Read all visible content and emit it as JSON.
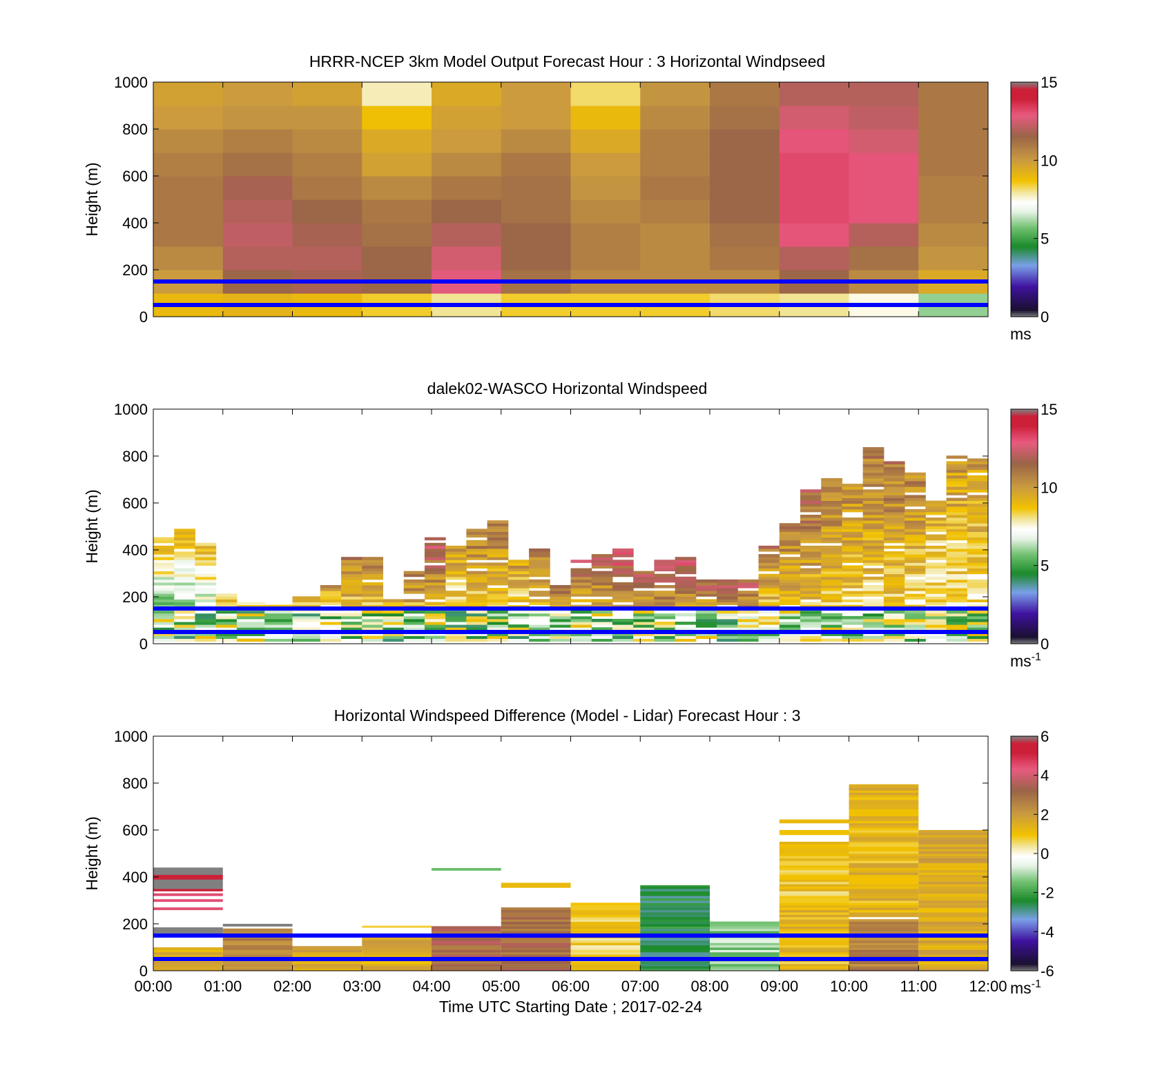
{
  "chart_data": [
    {
      "type": "heatmap",
      "title": "HRRR-NCEP 3km Model Output   Forecast Hour : 3 Horizontal Windpseed",
      "ylabel": "Height (m)",
      "xlabel": "",
      "ylim": [
        0,
        1000
      ],
      "yticks": [
        "0",
        "200",
        "400",
        "600",
        "800",
        "1000"
      ],
      "xlim": [
        0,
        12
      ],
      "colorbar": {
        "min": 0,
        "max": 15,
        "ticks": [
          "0",
          "5",
          "10",
          "15"
        ],
        "unit": "ms",
        "unit_sup": ""
      },
      "reference_lines_m": [
        150,
        50
      ],
      "heights_m": [
        50,
        150,
        250,
        350,
        450,
        550,
        650,
        750,
        850,
        950
      ],
      "cells": [
        {
          "x0": 0,
          "x1": 1,
          "values": [
            9.0,
            10.0,
            10.5,
            11.0,
            11.0,
            11.0,
            10.8,
            10.5,
            10.0,
            9.8
          ]
        },
        {
          "x0": 1,
          "x1": 2,
          "values": [
            9.2,
            11.5,
            12.0,
            12.2,
            12.0,
            11.8,
            11.2,
            10.8,
            10.2,
            10.0
          ]
        },
        {
          "x0": 2,
          "x1": 3,
          "values": [
            9.0,
            11.8,
            12.0,
            11.8,
            11.5,
            11.0,
            10.8,
            10.5,
            10.2,
            9.8
          ]
        },
        {
          "x0": 3,
          "x1": 4,
          "values": [
            8.5,
            11.5,
            11.5,
            11.2,
            11.0,
            10.5,
            9.8,
            9.5,
            8.8,
            7.8
          ]
        },
        {
          "x0": 4,
          "x1": 5,
          "values": [
            8.0,
            12.8,
            12.5,
            12.0,
            11.5,
            11.0,
            10.5,
            10.0,
            9.8,
            9.5
          ]
        },
        {
          "x0": 5,
          "x1": 6,
          "values": [
            8.5,
            11.2,
            11.5,
            11.5,
            11.2,
            11.2,
            11.0,
            10.5,
            10.0,
            10.0
          ]
        },
        {
          "x0": 6,
          "x1": 7,
          "values": [
            8.5,
            10.5,
            10.8,
            10.8,
            10.5,
            10.2,
            10.0,
            9.5,
            9.0,
            8.2
          ]
        },
        {
          "x0": 7,
          "x1": 8,
          "values": [
            8.5,
            10.5,
            10.5,
            10.5,
            10.8,
            11.0,
            10.8,
            10.8,
            10.5,
            10.2
          ]
        },
        {
          "x0": 8,
          "x1": 9,
          "values": [
            8.2,
            10.5,
            11.0,
            11.2,
            11.5,
            11.5,
            11.5,
            11.5,
            11.2,
            11.0
          ]
        },
        {
          "x0": 9,
          "x1": 10,
          "values": [
            8.0,
            11.5,
            12.0,
            13.0,
            13.2,
            13.2,
            13.2,
            13.0,
            12.5,
            12.0
          ]
        },
        {
          "x0": 10,
          "x1": 11,
          "values": [
            7.5,
            10.5,
            11.2,
            12.0,
            13.0,
            13.0,
            13.0,
            12.5,
            12.2,
            12.0
          ]
        },
        {
          "x0": 11,
          "x1": 12,
          "values": [
            6.0,
            9.5,
            10.2,
            10.5,
            10.8,
            10.8,
            11.0,
            11.0,
            11.0,
            11.0
          ]
        }
      ]
    },
    {
      "type": "heatmap",
      "title": "dalek02-WASCO  Horizontal Windspeed",
      "ylabel": "Height (m)",
      "xlabel": "",
      "ylim": [
        0,
        1000
      ],
      "yticks": [
        "0",
        "200",
        "400",
        "600",
        "800",
        "1000"
      ],
      "xlim": [
        0,
        12
      ],
      "colorbar": {
        "min": 0,
        "max": 15,
        "ticks": [
          "0",
          "5",
          "10",
          "15"
        ],
        "unit": "ms",
        "unit_sup": "-1"
      },
      "reference_lines_m": [
        150,
        50
      ],
      "columns": [
        {
          "x0": 0.0,
          "x1": 0.3,
          "top": 450,
          "low": 3,
          "high": 9
        },
        {
          "x0": 0.3,
          "x1": 0.6,
          "top": 490,
          "low": 4,
          "high": 9
        },
        {
          "x0": 0.6,
          "x1": 0.9,
          "top": 420,
          "low": 4,
          "high": 9
        },
        {
          "x0": 0.9,
          "x1": 1.2,
          "top": 210,
          "low": 5,
          "high": 9
        },
        {
          "x0": 1.2,
          "x1": 1.6,
          "top": 180,
          "low": 5,
          "high": 9
        },
        {
          "x0": 1.6,
          "x1": 2.0,
          "top": 160,
          "low": 5,
          "high": 9
        },
        {
          "x0": 2.0,
          "x1": 2.4,
          "top": 200,
          "low": 5,
          "high": 9
        },
        {
          "x0": 2.4,
          "x1": 2.7,
          "top": 250,
          "low": 5,
          "high": 10
        },
        {
          "x0": 2.7,
          "x1": 3.0,
          "top": 370,
          "low": 6,
          "high": 11
        },
        {
          "x0": 3.0,
          "x1": 3.3,
          "top": 360,
          "low": 6,
          "high": 11
        },
        {
          "x0": 3.3,
          "x1": 3.6,
          "top": 190,
          "low": 6,
          "high": 10
        },
        {
          "x0": 3.6,
          "x1": 3.9,
          "top": 300,
          "low": 6,
          "high": 11
        },
        {
          "x0": 3.9,
          "x1": 4.2,
          "top": 450,
          "low": 6,
          "high": 12.5
        },
        {
          "x0": 4.2,
          "x1": 4.5,
          "top": 420,
          "low": 6,
          "high": 10
        },
        {
          "x0": 4.5,
          "x1": 4.8,
          "top": 480,
          "low": 6,
          "high": 11
        },
        {
          "x0": 4.8,
          "x1": 5.1,
          "top": 520,
          "low": 6,
          "high": 11
        },
        {
          "x0": 5.1,
          "x1": 5.4,
          "top": 360,
          "low": 6,
          "high": 10
        },
        {
          "x0": 5.4,
          "x1": 5.7,
          "top": 400,
          "low": 6,
          "high": 11
        },
        {
          "x0": 5.7,
          "x1": 6.0,
          "top": 250,
          "low": 6,
          "high": 11
        },
        {
          "x0": 6.0,
          "x1": 6.3,
          "top": 350,
          "low": 6,
          "high": 12
        },
        {
          "x0": 6.3,
          "x1": 6.6,
          "top": 380,
          "low": 6,
          "high": 12
        },
        {
          "x0": 6.6,
          "x1": 6.9,
          "top": 400,
          "low": 6,
          "high": 13
        },
        {
          "x0": 6.9,
          "x1": 7.2,
          "top": 300,
          "low": 6,
          "high": 12
        },
        {
          "x0": 7.2,
          "x1": 7.5,
          "top": 370,
          "low": 6,
          "high": 13
        },
        {
          "x0": 7.5,
          "x1": 7.8,
          "top": 370,
          "low": 6,
          "high": 13
        },
        {
          "x0": 7.8,
          "x1": 8.1,
          "top": 280,
          "low": 6,
          "high": 12
        },
        {
          "x0": 8.1,
          "x1": 8.4,
          "top": 270,
          "low": 6,
          "high": 12.5
        },
        {
          "x0": 8.4,
          "x1": 8.7,
          "top": 270,
          "low": 6,
          "high": 12
        },
        {
          "x0": 8.7,
          "x1": 9.0,
          "top": 430,
          "low": 7,
          "high": 11
        },
        {
          "x0": 9.0,
          "x1": 9.3,
          "top": 520,
          "low": 7,
          "high": 11
        },
        {
          "x0": 9.3,
          "x1": 9.6,
          "top": 650,
          "low": 7,
          "high": 11.5
        },
        {
          "x0": 9.6,
          "x1": 9.9,
          "top": 700,
          "low": 7,
          "high": 11
        },
        {
          "x0": 9.9,
          "x1": 10.2,
          "top": 680,
          "low": 7,
          "high": 10.5
        },
        {
          "x0": 10.2,
          "x1": 10.5,
          "top": 830,
          "low": 7,
          "high": 11
        },
        {
          "x0": 10.5,
          "x1": 10.8,
          "top": 770,
          "low": 7,
          "high": 11
        },
        {
          "x0": 10.8,
          "x1": 11.1,
          "top": 730,
          "low": 7,
          "high": 10.5
        },
        {
          "x0": 11.1,
          "x1": 11.4,
          "top": 610,
          "low": 7,
          "high": 9.5
        },
        {
          "x0": 11.4,
          "x1": 11.7,
          "top": 800,
          "low": 7,
          "high": 10
        },
        {
          "x0": 11.7,
          "x1": 12.0,
          "top": 790,
          "low": 7,
          "high": 10
        }
      ]
    },
    {
      "type": "heatmap",
      "title": "Horizontal Windspeed Difference (Model - Lidar) Forecast Hour : 3",
      "ylabel": "Height (m)",
      "xlabel": "Time UTC  Starting Date ; 2017-02-24",
      "ylim": [
        0,
        1000
      ],
      "yticks": [
        "0",
        "200",
        "400",
        "600",
        "800",
        "1000"
      ],
      "xlim": [
        0,
        12
      ],
      "xticks": [
        "00:00",
        "01:00",
        "02:00",
        "03:00",
        "04:00",
        "05:00",
        "06:00",
        "07:00",
        "08:00",
        "09:00",
        "10:00",
        "11:00",
        "12:00"
      ],
      "colorbar": {
        "min": -6,
        "max": 6,
        "ticks": [
          "-6",
          "-4",
          "-2",
          "0",
          "2",
          "4",
          "6"
        ],
        "unit": "ms",
        "unit_sup": "-1"
      },
      "reference_lines_m": [
        150,
        50
      ],
      "blocks": [
        {
          "x0": 0,
          "x1": 1,
          "y0": 0,
          "y1": 100,
          "value": 1.5
        },
        {
          "x0": 0,
          "x1": 1,
          "y0": 160,
          "y1": 185,
          "value": 6
        },
        {
          "x0": 0,
          "x1": 1,
          "y0": 260,
          "y1": 270,
          "value": 4.5
        },
        {
          "x0": 0,
          "x1": 1,
          "y0": 295,
          "y1": 305,
          "value": 4.5
        },
        {
          "x0": 0,
          "x1": 1,
          "y0": 320,
          "y1": 330,
          "value": 4.5
        },
        {
          "x0": 0,
          "x1": 1,
          "y0": 340,
          "y1": 350,
          "value": 5.5
        },
        {
          "x0": 0,
          "x1": 1,
          "y0": 350,
          "y1": 440,
          "value": 6
        },
        {
          "x0": 1,
          "x1": 2,
          "y0": 0,
          "y1": 180,
          "value": 2.5
        },
        {
          "x0": 1,
          "x1": 2,
          "y0": 190,
          "y1": 200,
          "value": 6
        },
        {
          "x0": 2,
          "x1": 3,
          "y0": 0,
          "y1": 105,
          "value": 1.8
        },
        {
          "x0": 3,
          "x1": 4,
          "y0": 0,
          "y1": 150,
          "value": 1.5
        },
        {
          "x0": 3,
          "x1": 4,
          "y0": 185,
          "y1": 192,
          "value": 0.8
        },
        {
          "x0": 4,
          "x1": 5,
          "y0": 0,
          "y1": 190,
          "value": 3.2
        },
        {
          "x0": 4,
          "x1": 5,
          "y0": 428,
          "y1": 438,
          "value": -1.5
        },
        {
          "x0": 5,
          "x1": 6,
          "y0": 0,
          "y1": 270,
          "value": 3.0
        },
        {
          "x0": 5,
          "x1": 6,
          "y0": 355,
          "y1": 375,
          "value": 1.2
        },
        {
          "x0": 6,
          "x1": 7,
          "y0": 0,
          "y1": 290,
          "value": 0.8
        },
        {
          "x0": 7,
          "x1": 8,
          "y0": 0,
          "y1": 365,
          "value": -2.5
        },
        {
          "x0": 8,
          "x1": 9,
          "y0": 0,
          "y1": 210,
          "value": -1.2
        },
        {
          "x0": 9,
          "x1": 10,
          "y0": 0,
          "y1": 300,
          "value": 1.2
        },
        {
          "x0": 9,
          "x1": 10,
          "y0": 300,
          "y1": 550,
          "value": 0.9
        },
        {
          "x0": 9,
          "x1": 10,
          "y0": 580,
          "y1": 600,
          "value": 1.0
        },
        {
          "x0": 9,
          "x1": 10,
          "y0": 630,
          "y1": 645,
          "value": 1.2
        },
        {
          "x0": 10,
          "x1": 11,
          "y0": 0,
          "y1": 220,
          "value": 2.5
        },
        {
          "x0": 10,
          "x1": 11,
          "y0": 230,
          "y1": 795,
          "value": 1.3
        },
        {
          "x0": 11,
          "x1": 12,
          "y0": 0,
          "y1": 600,
          "value": 1.6
        }
      ]
    }
  ]
}
